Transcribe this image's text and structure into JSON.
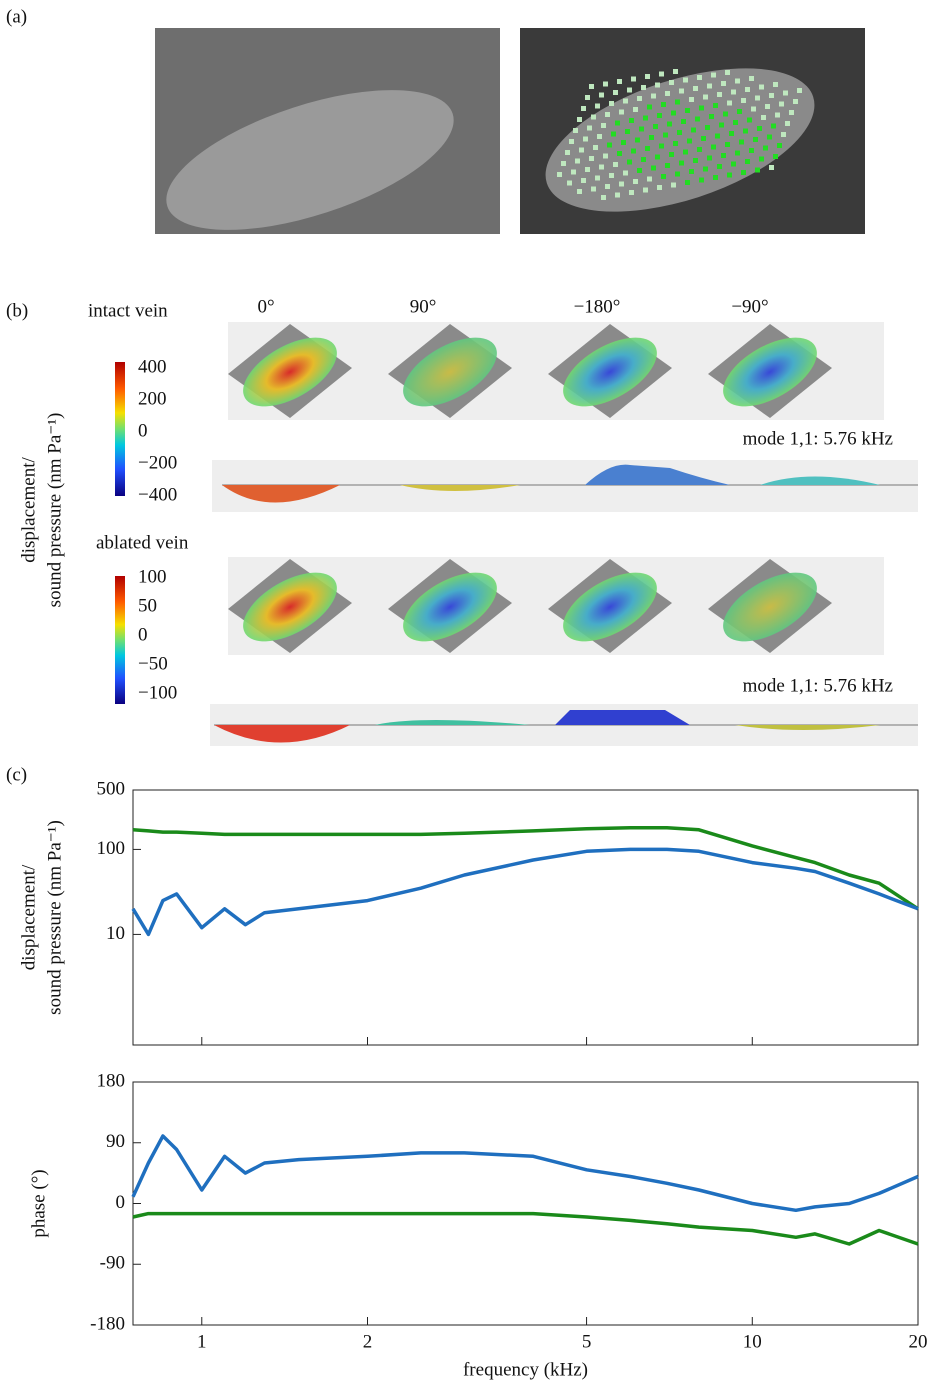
{
  "panel_a": {
    "label": "(a)"
  },
  "panel_b": {
    "label": "(b)",
    "ylabel": [
      "displacement/",
      "sound pressure (nm Pa⁻¹)"
    ],
    "angles": [
      "0°",
      "90°",
      "−180°",
      "−90°"
    ],
    "intact": {
      "title": "intact vein",
      "scale": [
        "400",
        "200",
        "0",
        "−200",
        "−400"
      ],
      "mode": "mode 1,1: 5.76 kHz"
    },
    "ablated": {
      "title": "ablated vein",
      "scale": [
        "100",
        "50",
        "0",
        "−50",
        "−100"
      ],
      "mode": "mode 1,1: 5.76 kHz"
    }
  },
  "panel_c": {
    "label": "(c)"
  },
  "chart_data": [
    {
      "type": "line",
      "log_x": true,
      "log_y": true,
      "ylabel": [
        "displacement/",
        "sound pressure (nm Pa⁻¹)"
      ],
      "x": [
        0.75,
        0.8,
        0.85,
        0.9,
        1,
        1.1,
        1.2,
        1.3,
        1.5,
        2,
        2.5,
        3,
        4,
        5,
        6,
        7,
        8,
        10,
        12,
        13,
        15,
        17,
        20
      ],
      "series": [
        {
          "color": "#1a8a1a",
          "values": [
            170,
            165,
            160,
            160,
            155,
            150,
            150,
            150,
            150,
            150,
            150,
            155,
            165,
            175,
            180,
            180,
            170,
            110,
            80,
            70,
            50,
            40,
            20
          ]
        },
        {
          "color": "#1f6fbf",
          "values": [
            20,
            10,
            25,
            30,
            12,
            20,
            13,
            18,
            20,
            25,
            35,
            50,
            75,
            95,
            100,
            100,
            95,
            70,
            60,
            55,
            40,
            30,
            20
          ]
        }
      ],
      "xlim": [
        0.75,
        20
      ],
      "ylim": [
        0.5,
        500
      ],
      "xticks": [
        1,
        2,
        5,
        10,
        20
      ],
      "yticks": [
        10,
        100,
        500
      ]
    },
    {
      "type": "line",
      "log_x": true,
      "log_y": false,
      "ylabel": [
        "phase (°)"
      ],
      "xlabel": "frequency (kHz)",
      "x": [
        0.75,
        0.8,
        0.85,
        0.9,
        1,
        1.1,
        1.2,
        1.3,
        1.5,
        2,
        2.5,
        3,
        4,
        5,
        6,
        7,
        8,
        10,
        12,
        13,
        15,
        17,
        20
      ],
      "series": [
        {
          "color": "#1f6fbf",
          "values": [
            10,
            60,
            100,
            80,
            20,
            70,
            45,
            60,
            65,
            70,
            75,
            75,
            70,
            50,
            40,
            30,
            20,
            0,
            -10,
            -5,
            0,
            15,
            40
          ]
        },
        {
          "color": "#1a8a1a",
          "values": [
            -20,
            -15,
            -15,
            -15,
            -15,
            -15,
            -15,
            -15,
            -15,
            -15,
            -15,
            -15,
            -15,
            -20,
            -25,
            -30,
            -35,
            -40,
            -50,
            -45,
            -60,
            -40,
            -60
          ]
        }
      ],
      "xlim": [
        0.75,
        20
      ],
      "ylim": [
        -180,
        180
      ],
      "xticks": [
        1,
        2,
        5,
        10,
        20
      ],
      "yticks": [
        -180,
        -90,
        0,
        90,
        180
      ]
    }
  ]
}
